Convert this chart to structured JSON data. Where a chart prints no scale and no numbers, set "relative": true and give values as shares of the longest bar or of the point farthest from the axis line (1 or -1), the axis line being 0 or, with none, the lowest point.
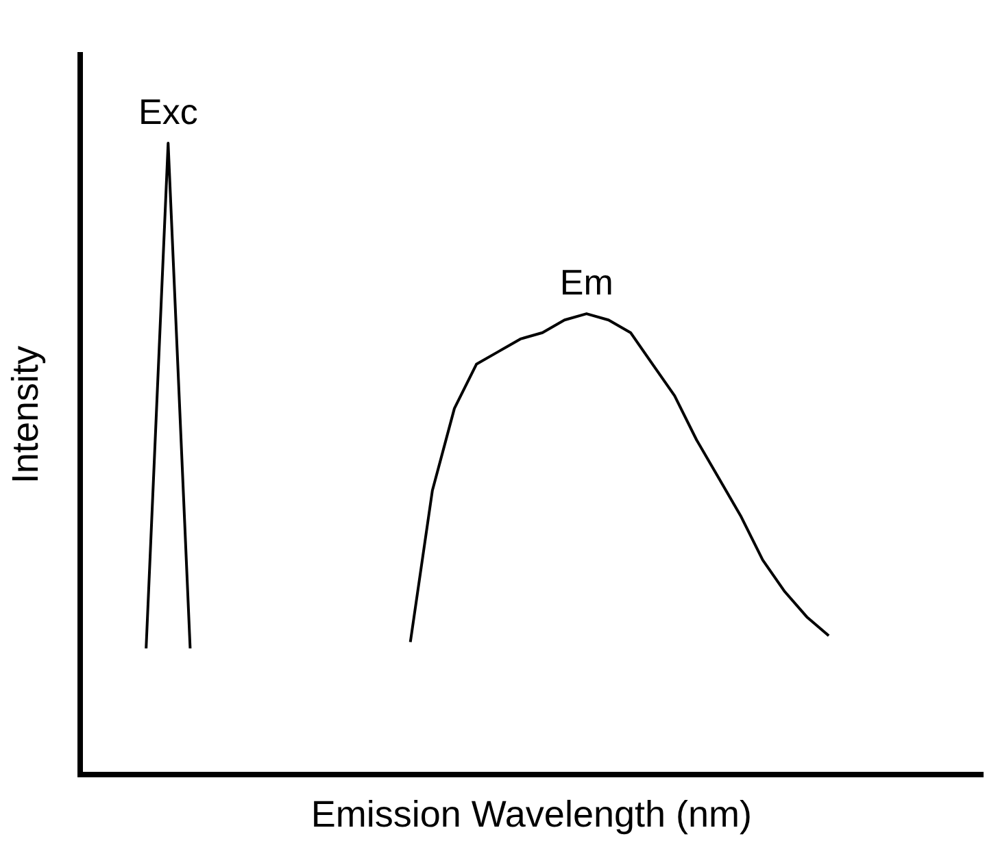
{
  "chart_data": {
    "type": "line",
    "relative": true,
    "xlabel": "Emission Wavelength (nm)",
    "ylabel": "Intensity",
    "grid": false,
    "legend": false,
    "marker": "none",
    "categories": [
      null,
      null,
      null,
      null,
      null,
      null,
      null,
      null,
      null,
      null,
      null,
      null,
      null,
      null,
      null,
      null,
      null,
      null,
      null,
      null,
      null,
      null,
      null,
      null,
      null,
      null,
      null,
      null,
      null,
      null,
      null,
      null,
      null,
      null,
      null,
      null,
      null,
      null,
      null,
      null,
      null,
      null
    ],
    "series": [
      {
        "name": "Exc",
        "color": "#000000",
        "values": [
          null,
          null,
          null,
          0.2,
          1,
          0.2,
          null,
          null,
          null,
          null,
          null,
          null,
          null,
          null,
          null,
          null,
          null,
          null,
          null,
          null,
          null,
          null,
          null,
          null,
          null,
          null,
          null,
          null,
          null,
          null,
          null,
          null,
          null,
          null,
          null,
          null,
          null,
          null,
          null,
          null,
          null,
          null
        ]
      },
      {
        "name": "Em",
        "color": "#000000",
        "values": [
          null,
          null,
          null,
          null,
          null,
          null,
          null,
          null,
          null,
          null,
          null,
          null,
          null,
          null,
          null,
          0.21,
          0.45,
          0.58,
          0.65,
          0.67,
          0.69,
          0.7,
          0.72,
          0.73,
          0.72,
          0.7,
          0.65,
          0.6,
          0.53,
          0.47,
          0.41,
          0.34,
          0.29,
          0.25,
          0.22,
          null,
          null,
          null,
          null,
          null,
          null,
          null
        ]
      }
    ]
  }
}
